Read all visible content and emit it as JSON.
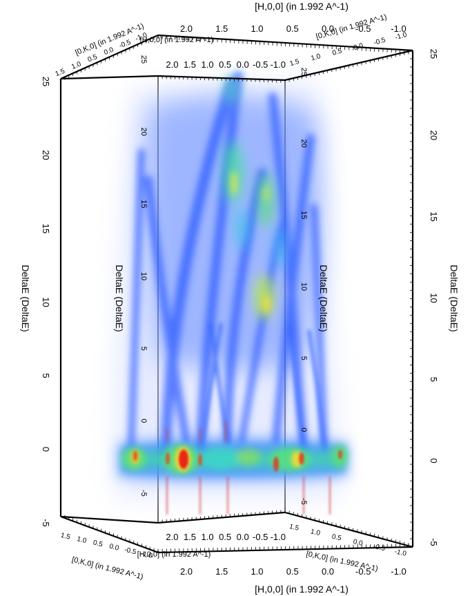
{
  "chart_data": {
    "type": "heatmap",
    "subtype": "3d-volume-render",
    "colormap": "jet (white-blue-green-yellow-red)",
    "axes": {
      "h": {
        "label": "[H,0,0] (in 1.992 A^-1)",
        "ticks": [
          "2.0",
          "1.5",
          "1.0",
          "0.5",
          "0.0",
          "-0.5",
          "-1.0"
        ],
        "range": [
          -1.2,
          2.4
        ]
      },
      "k": {
        "label": "[0,K,0] (in 1.992 A^-1)",
        "ticks": [
          "1.5",
          "1.0",
          "0.5",
          "0.0",
          "-0.5",
          "-1.0"
        ],
        "range": [
          -1.2,
          1.8
        ]
      },
      "e": {
        "label": "DeltaE (DeltaE)",
        "ticks": [
          "-5",
          "0",
          "5",
          "10",
          "15",
          "20",
          "25"
        ],
        "range": [
          -5,
          25
        ]
      }
    },
    "features": [
      {
        "kind": "elastic-band",
        "deltaE": 0
      },
      {
        "kind": "dispersive-branches",
        "max_deltaE": 25
      }
    ],
    "grid": false
  },
  "labels": {
    "h_top": "[H,0,0] (in 1.992 A^-1)",
    "h_bottom": "[H,0,0] (in 1.992 A^-1)",
    "h_inner_top": "[H,0,0] (in 1.992 A^-1)",
    "h_inner_bottom": "[H,0,0] (in 1.992 A^-1)",
    "k_top_left": "[0,K,0] (in 1.992 A^-1)",
    "k_top_right": "[0,K,0] (in 1.992 A^-1)",
    "k_bottom_left": "[0,K,0] (in 1.992 A^-1)",
    "k_bottom_right": "[0,K,0] (in 1.992 A^-1)",
    "e_left": "DeltaE (DeltaE)",
    "e_right": "DeltaE (DeltaE)",
    "e_inner_left": "DeltaE (DeltaE)",
    "e_inner_right": "DeltaE (DeltaE)"
  },
  "colors": {
    "background": "#ffffff",
    "blue": "#2f5cff",
    "cyan": "#21c4ee",
    "green": "#56e07a",
    "yellow": "#ecee3f",
    "red": "#e82616"
  }
}
